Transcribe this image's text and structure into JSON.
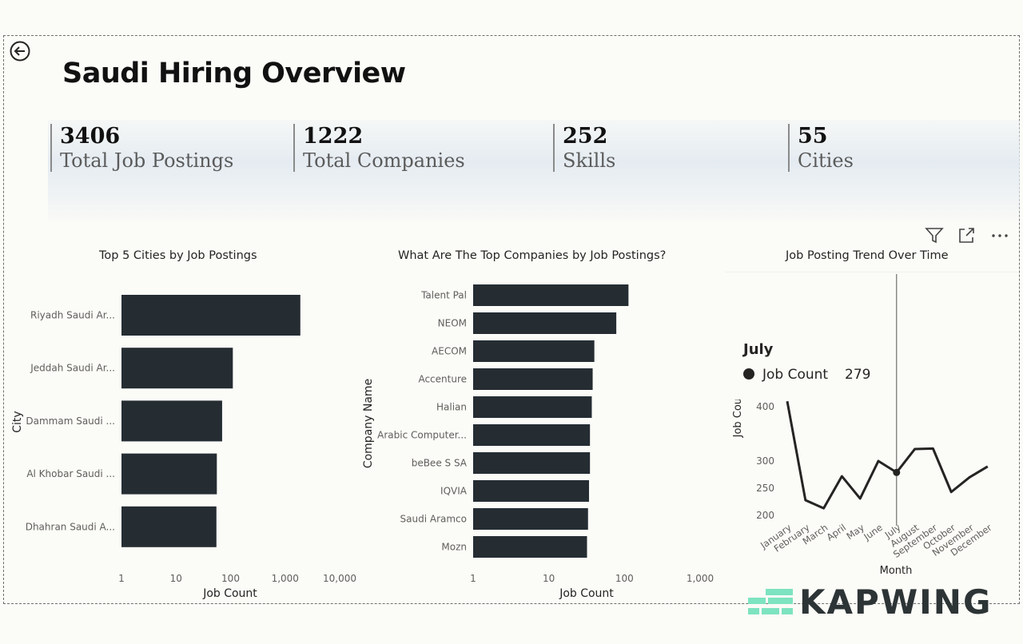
{
  "page": {
    "title": "Saudi Hiring Overview",
    "back_icon": "back-arrow-icon"
  },
  "kpis": [
    {
      "value": "3406",
      "label": "Total Job Postings"
    },
    {
      "value": "1222",
      "label": "Total Companies"
    },
    {
      "value": "252",
      "label": "Skills"
    },
    {
      "value": "55",
      "label": "Cities"
    }
  ],
  "toolbar": {
    "icons": [
      "filter-icon",
      "focus-mode-icon",
      "more-options-icon"
    ]
  },
  "tooltip": {
    "title": "July",
    "series": "Job Count",
    "value": "279"
  },
  "watermark": {
    "text": "KAPWING"
  },
  "colors": {
    "bar": "#252d33",
    "line": "#252423",
    "background": "#fbfbf7"
  },
  "chart_data": [
    {
      "type": "bar",
      "orientation": "horizontal",
      "title": "Top 5 Cities by Job Postings",
      "xlabel": "Job Count",
      "ylabel": "City",
      "x_scale": "log",
      "x_ticks": [
        "1",
        "10",
        "100",
        "1,000",
        "10,000"
      ],
      "categories": [
        "Riyadh Saudi Ar...",
        "Jeddah Saudi Ar...",
        "Dammam Saudi ...",
        "Al Khobar Saudi ...",
        "Dhahran Saudi A..."
      ],
      "values": [
        1900,
        110,
        70,
        56,
        55
      ]
    },
    {
      "type": "bar",
      "orientation": "horizontal",
      "title": "What Are The Top Companies by Job Postings?",
      "xlabel": "Job Count",
      "ylabel": "Company Name",
      "x_scale": "log",
      "x_ticks": [
        "1",
        "10",
        "100",
        "1,000"
      ],
      "categories": [
        "Talent Pal",
        "NEOM",
        "AECOM",
        "Accenture",
        "Halian",
        "Arabic Computer...",
        "beBee S SA",
        "IQVIA",
        "Saudi Aramco",
        "Mozn"
      ],
      "values": [
        113,
        78,
        40,
        38,
        37,
        35,
        35,
        34,
        33,
        32
      ]
    },
    {
      "type": "line",
      "title": "Job Posting Trend Over Time",
      "xlabel": "Month",
      "ylabel": "Job Count",
      "categories": [
        "January",
        "February",
        "March",
        "April",
        "May",
        "June",
        "July",
        "August",
        "September",
        "October",
        "November",
        "December"
      ],
      "values": [
        410,
        228,
        213,
        272,
        231,
        300,
        279,
        322,
        323,
        243,
        270,
        290
      ],
      "y_ticks": [
        "200",
        "250",
        "300",
        "400"
      ],
      "ylim": [
        200,
        420
      ],
      "highlight": "July"
    }
  ]
}
